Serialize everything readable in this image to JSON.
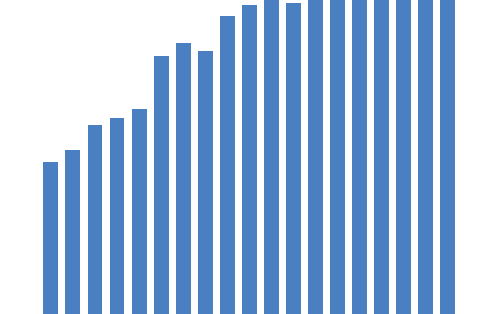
{
  "chart_data": {
    "type": "bar",
    "values": [
      214,
      231,
      265,
      275,
      288,
      363,
      380,
      369,
      418,
      434,
      441,
      437,
      441,
      441,
      441,
      441,
      441,
      441,
      441
    ],
    "color": "#4a80c1",
    "ylim": [
      0,
      441
    ]
  }
}
